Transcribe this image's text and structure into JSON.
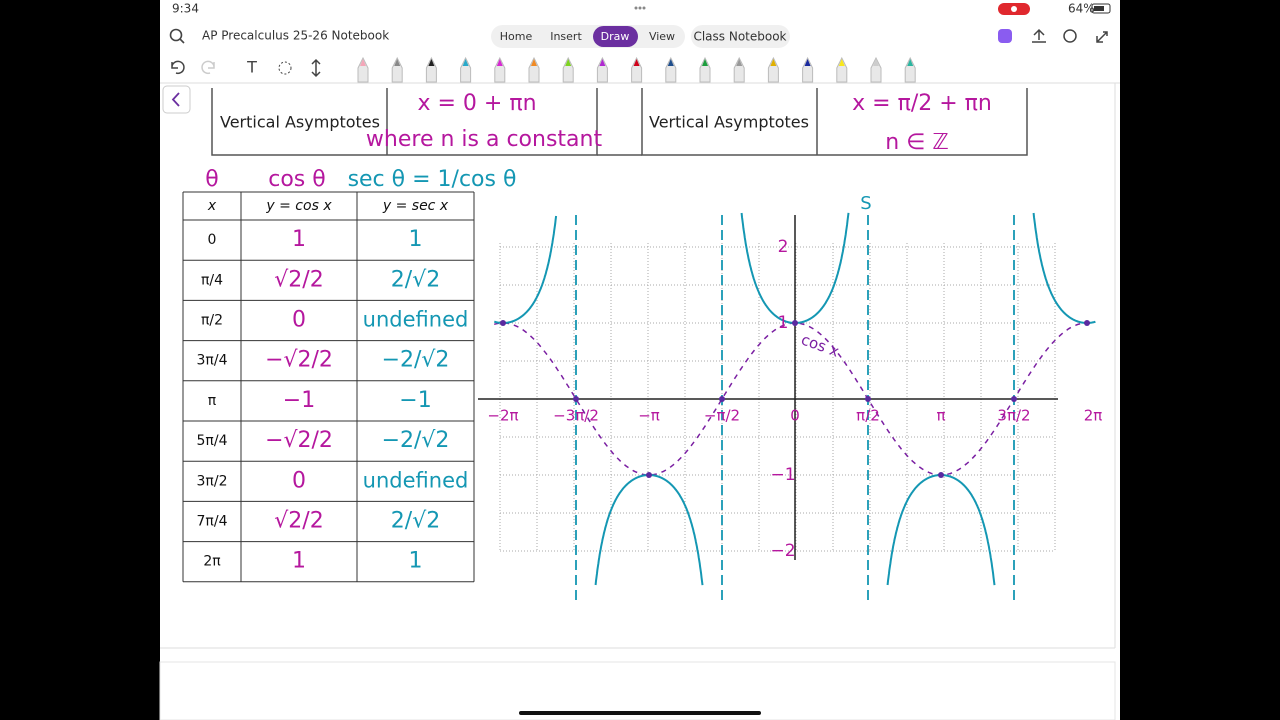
{
  "status_bar": {
    "time": "9:34",
    "battery": "64%"
  },
  "app_bar": {
    "notebook_title": "AP Precalculus 25-26 Notebook",
    "tabs": [
      "Home",
      "Insert",
      "Draw",
      "View"
    ],
    "class_notebook": "Class Notebook"
  },
  "note": {
    "asymptote_tables": [
      {
        "label": "Vertical Asymptotes",
        "equation": "x = 0 + πn",
        "note": "where n is a constant"
      },
      {
        "label": "Vertical Asymptotes",
        "equation": "x = π/2 + πn",
        "note": "n ∈ ℤ"
      }
    ],
    "headings": {
      "theta": "θ",
      "cos": "cos θ",
      "sec": "sec θ = 1/cos θ"
    },
    "table": {
      "header": [
        "x",
        "y = cos x",
        "y = sec x"
      ],
      "rows": [
        [
          "0",
          "1",
          "1"
        ],
        [
          "π/4",
          "√2/2",
          "2/√2"
        ],
        [
          "π/2",
          "0",
          "undefined"
        ],
        [
          "3π/4",
          "−√2/2",
          "−2/√2"
        ],
        [
          "π",
          "−1",
          "−1"
        ],
        [
          "5π/4",
          "−√2/2",
          "−2/√2"
        ],
        [
          "3π/2",
          "0",
          "undefined"
        ],
        [
          "7π/4",
          "√2/2",
          "2/√2"
        ],
        [
          "2π",
          "1",
          "1"
        ]
      ]
    },
    "graph": {
      "x_labels": [
        "−2π",
        "−3π/2",
        "−π",
        "−π/2",
        "0",
        "π/2",
        "π",
        "3π/2",
        "2π"
      ],
      "y_labels": [
        "2",
        "1",
        "−1",
        "−2"
      ],
      "axis_label": "S",
      "curve_label": "cos x"
    }
  }
}
